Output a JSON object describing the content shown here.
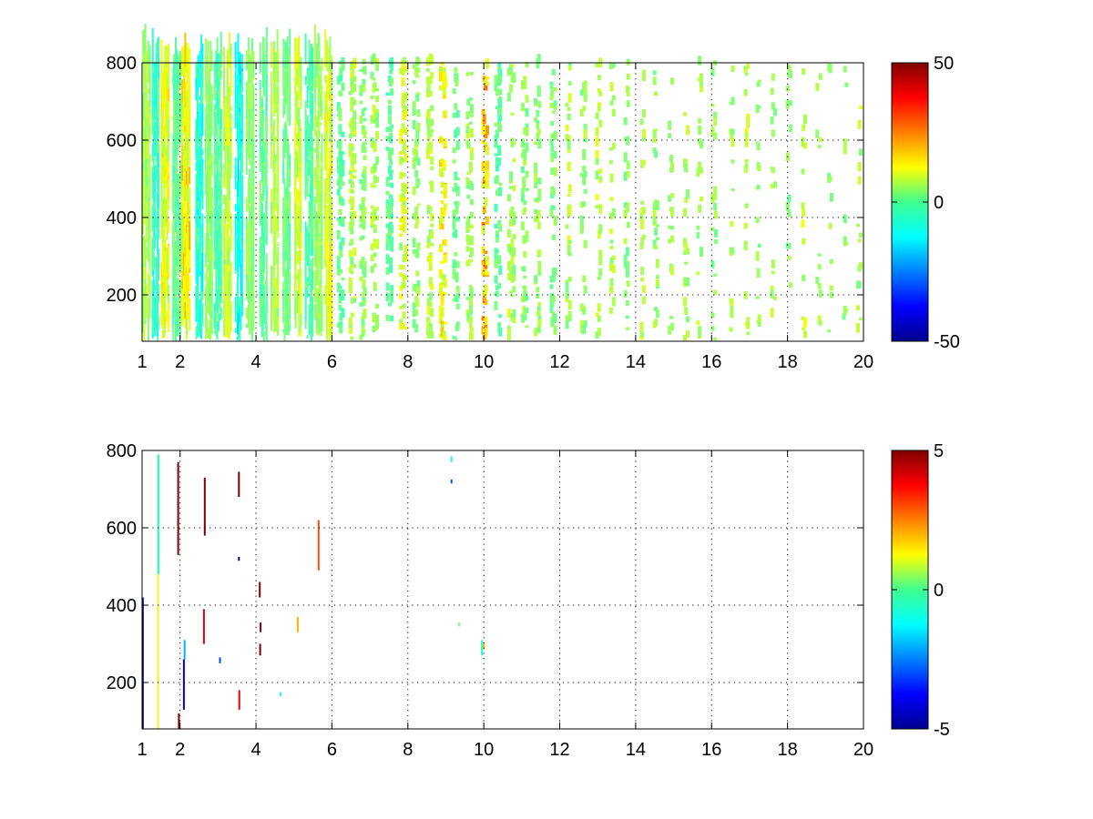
{
  "chart_data": [
    {
      "type": "heatmap",
      "title": "",
      "xlabel": "",
      "ylabel": "",
      "xlim": [
        1,
        20
      ],
      "ylim": [
        80,
        800
      ],
      "x_ticks": [
        1,
        2,
        4,
        6,
        8,
        10,
        12,
        14,
        16,
        18,
        20
      ],
      "x_tick_labels": [
        "1",
        "2",
        "4",
        "6",
        "8",
        "10",
        "12",
        "14",
        "16",
        "18",
        "20"
      ],
      "y_ticks": [
        200,
        400,
        600,
        800
      ],
      "y_tick_labels": [
        "200",
        "400",
        "600",
        "800"
      ],
      "grid": true,
      "colormap": "jet",
      "background": "#ffffff",
      "clim": [
        -50,
        50
      ],
      "colorbar": {
        "ticks": [
          -50,
          0,
          50
        ],
        "tick_labels": [
          "-50",
          "0",
          "50"
        ],
        "placement": "right"
      },
      "column_clusters_x": [
        1.1,
        1.35,
        1.6,
        1.9,
        2.15,
        2.5,
        2.75,
        3.0,
        3.25,
        3.55,
        3.85,
        4.2,
        4.5,
        4.8,
        5.1,
        5.4,
        5.65,
        5.9,
        6.2,
        6.5,
        6.8,
        7.1,
        7.5,
        7.85,
        8.2,
        8.55,
        8.9,
        9.25,
        9.6,
        10.0,
        10.35,
        10.7,
        11.05,
        11.4,
        11.8,
        12.2,
        12.6,
        13.0,
        13.35,
        13.75,
        14.15,
        14.5,
        14.9,
        15.3,
        15.65,
        16.05,
        16.5,
        16.9,
        17.2,
        17.6,
        18.0,
        18.4,
        18.8,
        19.1,
        19.5,
        19.85
      ],
      "column_values": [
        5,
        -8,
        12,
        -4,
        15,
        -10,
        3,
        -6,
        8,
        -12,
        2,
        -3,
        6,
        -2,
        9,
        -5,
        4,
        11,
        -3,
        7,
        2,
        5,
        -4,
        10,
        3,
        6,
        14,
        -2,
        4,
        20,
        -3,
        5,
        2,
        4,
        1,
        6,
        3,
        8,
        5,
        2,
        7,
        3,
        4,
        5,
        6,
        2,
        5,
        8,
        3,
        4,
        2,
        7,
        5,
        3,
        4,
        6
      ]
    },
    {
      "type": "heatmap",
      "title": "",
      "xlabel": "",
      "ylabel": "",
      "xlim": [
        1,
        20
      ],
      "ylim": [
        80,
        800
      ],
      "x_ticks": [
        1,
        2,
        4,
        6,
        8,
        10,
        12,
        14,
        16,
        18,
        20
      ],
      "x_tick_labels": [
        "1",
        "2",
        "4",
        "6",
        "8",
        "10",
        "12",
        "14",
        "16",
        "18",
        "20"
      ],
      "y_ticks": [
        200,
        400,
        600,
        800
      ],
      "y_tick_labels": [
        "200",
        "400",
        "600",
        "800"
      ],
      "grid": true,
      "colormap": "jet",
      "background": "#ffffff",
      "clim": [
        -5,
        5
      ],
      "colorbar": {
        "ticks": [
          -5,
          0,
          5
        ],
        "tick_labels": [
          "-5",
          "0",
          "5"
        ],
        "placement": "right"
      },
      "segments": [
        {
          "x": 1.02,
          "y0": 80,
          "y1": 420,
          "v": -5
        },
        {
          "x": 1.42,
          "y0": 80,
          "y1": 790,
          "v": 1
        },
        {
          "x": 1.43,
          "y0": 480,
          "y1": 790,
          "v": -1
        },
        {
          "x": 1.95,
          "y0": 530,
          "y1": 770,
          "v": 5
        },
        {
          "x": 1.97,
          "y0": 80,
          "y1": 120,
          "v": 5
        },
        {
          "x": 2.1,
          "y0": 130,
          "y1": 260,
          "v": -4
        },
        {
          "x": 2.12,
          "y0": 260,
          "y1": 310,
          "v": -2
        },
        {
          "x": 2.65,
          "y0": 580,
          "y1": 730,
          "v": 5
        },
        {
          "x": 2.63,
          "y0": 300,
          "y1": 390,
          "v": 4
        },
        {
          "x": 3.05,
          "y0": 250,
          "y1": 265,
          "v": -3
        },
        {
          "x": 3.55,
          "y0": 680,
          "y1": 745,
          "v": 5
        },
        {
          "x": 3.56,
          "y0": 130,
          "y1": 180,
          "v": 4
        },
        {
          "x": 3.55,
          "y0": 515,
          "y1": 525,
          "v": -5
        },
        {
          "x": 4.1,
          "y0": 420,
          "y1": 460,
          "v": 5
        },
        {
          "x": 4.12,
          "y0": 330,
          "y1": 355,
          "v": 5
        },
        {
          "x": 4.11,
          "y0": 270,
          "y1": 300,
          "v": 5
        },
        {
          "x": 4.65,
          "y0": 165,
          "y1": 175,
          "v": -1
        },
        {
          "x": 5.1,
          "y0": 330,
          "y1": 370,
          "v": 2
        },
        {
          "x": 5.65,
          "y0": 490,
          "y1": 620,
          "v": 3
        },
        {
          "x": 9.15,
          "y0": 770,
          "y1": 785,
          "v": -1
        },
        {
          "x": 9.15,
          "y0": 715,
          "y1": 725,
          "v": -3
        },
        {
          "x": 9.35,
          "y0": 345,
          "y1": 355,
          "v": 0
        },
        {
          "x": 9.95,
          "y0": 270,
          "y1": 310,
          "v": -1
        },
        {
          "x": 10.0,
          "y0": 285,
          "y1": 305,
          "v": 2
        }
      ]
    }
  ]
}
